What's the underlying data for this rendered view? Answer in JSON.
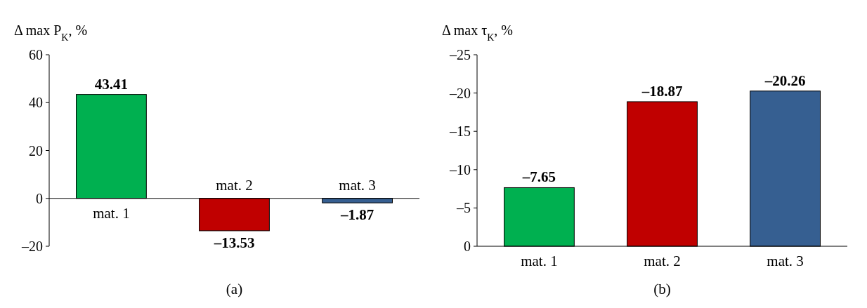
{
  "chart_data": [
    {
      "type": "bar",
      "ylabel": "Δ max P$_{K}$, %",
      "categories": [
        "mat. 1",
        "mat. 2",
        "mat. 3"
      ],
      "values": [
        43.41,
        -13.53,
        -1.87
      ],
      "colors": [
        "#00b050",
        "#c00000",
        "#365f91"
      ],
      "value_labels": [
        "43.41",
        "–13.53",
        "–1.87"
      ],
      "ylim": [
        -20,
        60
      ],
      "yticks": [
        60,
        40,
        20,
        0,
        {
          "value": -20,
          "label": "–20"
        }
      ],
      "annotations": [
        "(a)"
      ]
    },
    {
      "type": "bar",
      "ylabel": "Δ max τ$_{K}$, %",
      "categories": [
        "mat. 1",
        "mat. 2",
        "mat. 3"
      ],
      "values": [
        -7.65,
        -18.87,
        -20.26
      ],
      "colors": [
        "#00b050",
        "#c00000",
        "#365f91"
      ],
      "value_labels": [
        "–7.65",
        "–18.87",
        "–20.26"
      ],
      "ylim": [
        0,
        -25
      ],
      "yticks": [
        {
          "value": -25,
          "label": "–25"
        },
        {
          "value": -20,
          "label": "–20"
        },
        {
          "value": -15,
          "label": "–15"
        },
        {
          "value": -10,
          "label": "–10"
        },
        {
          "value": -5,
          "label": "–5"
        },
        0
      ],
      "annotations": [
        "(b)"
      ]
    }
  ]
}
